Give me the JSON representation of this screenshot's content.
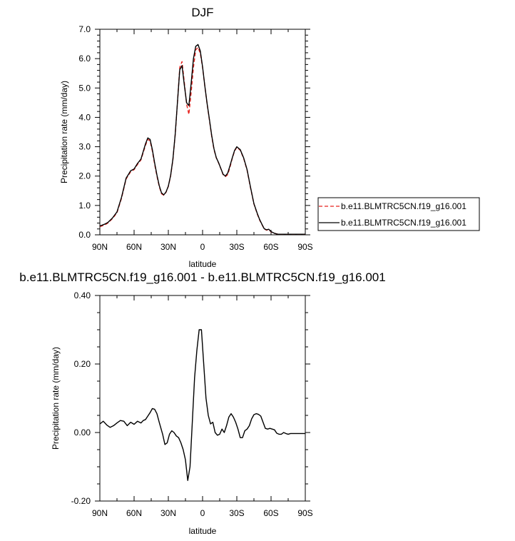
{
  "chart_data": [
    {
      "type": "line",
      "title": "DJF",
      "xlabel": "latitude",
      "ylabel": "Precipitation rate (mm/day)",
      "xlim": [
        90,
        -90
      ],
      "ylim": [
        0,
        7
      ],
      "xticks": [
        90,
        60,
        30,
        0,
        -30,
        -60,
        -90
      ],
      "xtick_labels": [
        "90N",
        "60N",
        "30N",
        "0",
        "30S",
        "60S",
        "90S"
      ],
      "yticks": [
        0,
        1,
        2,
        3,
        4,
        5,
        6,
        7
      ],
      "ytick_labels": [
        "0.0",
        "1.0",
        "2.0",
        "3.0",
        "4.0",
        "5.0",
        "6.0",
        "7.0"
      ],
      "grid": false,
      "legend_placement": "right",
      "series": [
        {
          "name": "b.e11.BLMTRC5CN.f19_g16.001",
          "color": "#e8231e",
          "dash": "dashed",
          "x": [
            90,
            86,
            83,
            79,
            75,
            71,
            67,
            63,
            60,
            57,
            54,
            52,
            50,
            48,
            46,
            44,
            42,
            40,
            38,
            36,
            34,
            32,
            30,
            28,
            26,
            24,
            22,
            20,
            18,
            16,
            14,
            12,
            10,
            8,
            6,
            4,
            2,
            0,
            -2,
            -4,
            -6,
            -8,
            -10,
            -12,
            -14,
            -16,
            -18,
            -20,
            -22,
            -24,
            -26,
            -28,
            -30,
            -33,
            -36,
            -39,
            -42,
            -45,
            -48,
            -50,
            -52,
            -54,
            -56,
            -58,
            -60,
            -63,
            -66,
            -69,
            -72,
            -75,
            -78,
            -81,
            -84,
            -87,
            -90
          ],
          "y": [
            0.28,
            0.33,
            0.4,
            0.55,
            0.75,
            1.25,
            1.9,
            2.15,
            2.22,
            2.4,
            2.55,
            2.8,
            3.05,
            3.25,
            3.2,
            2.85,
            2.4,
            2.0,
            1.65,
            1.4,
            1.35,
            1.45,
            1.65,
            2.0,
            2.55,
            3.4,
            4.5,
            5.7,
            5.9,
            5.2,
            4.45,
            4.1,
            4.85,
            5.7,
            6.3,
            6.38,
            6.18,
            5.7,
            5.05,
            4.45,
            3.9,
            3.35,
            2.9,
            2.62,
            2.45,
            2.25,
            2.05,
            1.98,
            2.05,
            2.3,
            2.6,
            2.85,
            2.98,
            2.88,
            2.6,
            2.2,
            1.6,
            1.05,
            0.7,
            0.5,
            0.35,
            0.2,
            0.16,
            0.18,
            0.1,
            0.05,
            0.02,
            0.02,
            0.02,
            0.02,
            0.02,
            0.02,
            0.02,
            0.02,
            0.02
          ]
        },
        {
          "name": "b.e11.BLMTRC5CN.f19_g16.001",
          "color": "#000000",
          "dash": "solid",
          "x": [
            90,
            86,
            83,
            79,
            75,
            71,
            67,
            63,
            60,
            57,
            54,
            52,
            50,
            48,
            46,
            44,
            42,
            40,
            38,
            36,
            34,
            32,
            30,
            28,
            26,
            24,
            22,
            20,
            18,
            16,
            14,
            12,
            10,
            8,
            6,
            4,
            2,
            0,
            -2,
            -4,
            -6,
            -8,
            -10,
            -12,
            -14,
            -16,
            -18,
            -20,
            -22,
            -24,
            -26,
            -28,
            -30,
            -33,
            -36,
            -39,
            -42,
            -45,
            -48,
            -50,
            -52,
            -54,
            -56,
            -58,
            -60,
            -63,
            -66,
            -69,
            -72,
            -75,
            -78,
            -81,
            -84,
            -87,
            -90
          ],
          "y": [
            0.3,
            0.36,
            0.42,
            0.57,
            0.78,
            1.28,
            1.93,
            2.18,
            2.24,
            2.43,
            2.58,
            2.84,
            3.1,
            3.3,
            3.25,
            2.9,
            2.45,
            2.04,
            1.68,
            1.43,
            1.36,
            1.46,
            1.66,
            2.02,
            2.58,
            3.42,
            4.52,
            5.62,
            5.76,
            5.1,
            4.5,
            4.4,
            5.16,
            6.0,
            6.42,
            6.48,
            6.26,
            5.72,
            5.06,
            4.46,
            3.93,
            3.38,
            2.93,
            2.63,
            2.46,
            2.26,
            2.06,
            2.0,
            2.1,
            2.35,
            2.62,
            2.87,
            3.0,
            2.9,
            2.62,
            2.22,
            1.62,
            1.06,
            0.72,
            0.52,
            0.36,
            0.21,
            0.17,
            0.19,
            0.11,
            0.05,
            0.02,
            0.02,
            0.02,
            0.02,
            0.02,
            0.02,
            0.02,
            0.02,
            0.02
          ]
        }
      ]
    },
    {
      "type": "line",
      "title": "b.e11.BLMTRC5CN.f19_g16.001 - b.e11.BLMTRC5CN.f19_g16.001",
      "xlabel": "latitude",
      "ylabel": "Precipitation rate (mm/day)",
      "xlim": [
        90,
        -90
      ],
      "ylim": [
        -0.2,
        0.4
      ],
      "xticks": [
        90,
        60,
        30,
        0,
        -30,
        -60,
        -90
      ],
      "xtick_labels": [
        "90N",
        "60N",
        "30N",
        "0",
        "30S",
        "60S",
        "90S"
      ],
      "yticks": [
        -0.2,
        0,
        0.2,
        0.4
      ],
      "ytick_labels": [
        "-0.20",
        "0.00",
        "0.20",
        "0.40"
      ],
      "grid": false,
      "series": [
        {
          "color": "#000000",
          "dash": "solid",
          "x": [
            90,
            87,
            84,
            81,
            78,
            75,
            72,
            69,
            66,
            63,
            60,
            57,
            54,
            52,
            50,
            48,
            46,
            44,
            42,
            40,
            38,
            35,
            33,
            31,
            29,
            27,
            25,
            23,
            21,
            19,
            17,
            15,
            13,
            11,
            9,
            7,
            5,
            3,
            1,
            -1,
            -3,
            -5,
            -7,
            -9,
            -11,
            -13,
            -15,
            -17,
            -19,
            -21,
            -23,
            -25,
            -27,
            -29,
            -31,
            -33,
            -35,
            -37,
            -39,
            -41,
            -43,
            -45,
            -47,
            -49,
            -51,
            -53,
            -55,
            -57,
            -59,
            -61,
            -63,
            -65,
            -67,
            -69,
            -71,
            -73,
            -75,
            -77,
            -79,
            -81,
            -83,
            -85,
            -87,
            -90
          ],
          "y": [
            0.025,
            0.033,
            0.022,
            0.015,
            0.02,
            0.028,
            0.035,
            0.033,
            0.02,
            0.03,
            0.024,
            0.033,
            0.028,
            0.035,
            0.038,
            0.048,
            0.058,
            0.07,
            0.068,
            0.055,
            0.03,
            -0.005,
            -0.035,
            -0.03,
            -0.005,
            0.005,
            0.0,
            -0.01,
            -0.015,
            -0.03,
            -0.05,
            -0.08,
            -0.14,
            -0.1,
            0.03,
            0.16,
            0.24,
            0.3,
            0.3,
            0.2,
            0.1,
            0.05,
            0.025,
            0.03,
            0.0,
            -0.008,
            -0.005,
            0.01,
            0.0,
            0.02,
            0.045,
            0.055,
            0.045,
            0.03,
            0.01,
            -0.015,
            -0.015,
            0.005,
            0.01,
            0.02,
            0.04,
            0.052,
            0.055,
            0.053,
            0.048,
            0.03,
            0.012,
            0.01,
            0.012,
            0.01,
            0.008,
            -0.002,
            -0.005,
            -0.005,
            0.0,
            -0.003,
            -0.005,
            -0.003,
            -0.003,
            -0.003,
            -0.003,
            -0.003,
            -0.003,
            -0.003
          ]
        }
      ]
    }
  ]
}
